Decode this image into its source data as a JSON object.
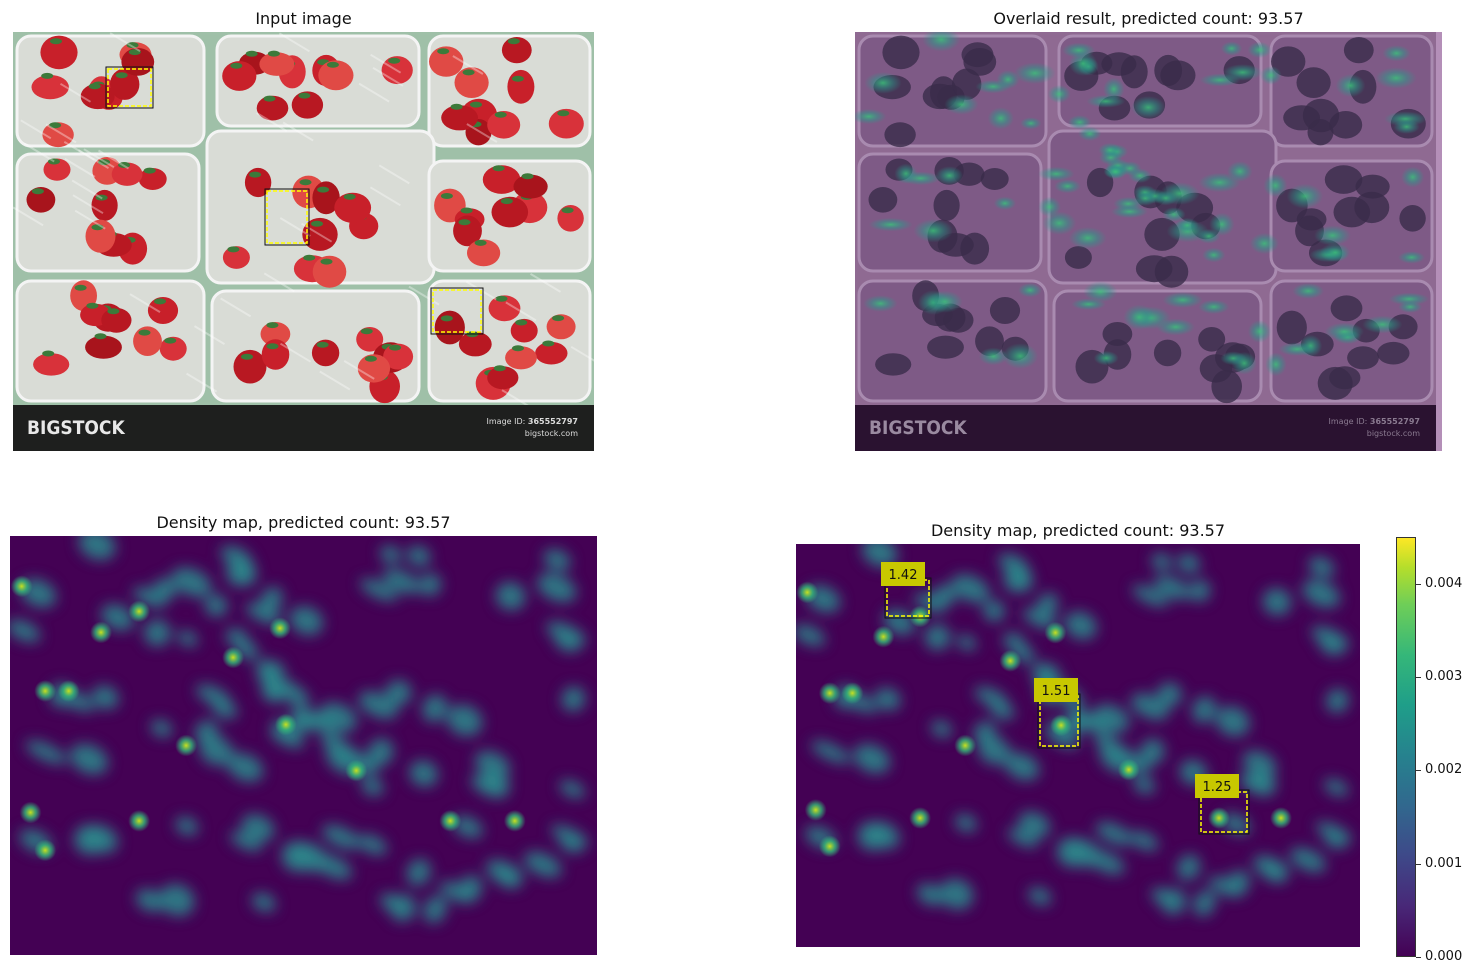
{
  "panels": {
    "input": {
      "title": "Input image"
    },
    "overlay": {
      "title": "Overlaid result, predicted count: 93.57"
    },
    "density": {
      "title": "Density map, predicted count: 93.57"
    },
    "density_boxes": {
      "title": "Density map, predicted count: 93.57"
    }
  },
  "watermark": {
    "logo": "BIGSTOCK",
    "image_id_label": "Image ID:",
    "image_id": "365552797",
    "site": "bigstock.com"
  },
  "colors": {
    "viridis_low": "#440154",
    "viridis_mid": "#21918c",
    "viridis_high": "#fde725",
    "exemplar_box": "#ffff00",
    "label_bg": "#c8c800"
  },
  "chart_data": [
    {
      "type": "heatmap",
      "title": "Density map, predicted count: 93.57",
      "predicted_count": 93.57,
      "colormap": "viridis"
    },
    {
      "type": "heatmap",
      "title": "Density map, predicted count: 93.57",
      "predicted_count": 93.57,
      "colormap": "viridis",
      "colorbar": {
        "range": [
          0.0,
          0.0045
        ],
        "ticks": [
          "0.000",
          "0.001",
          "0.002",
          "0.003",
          "0.004"
        ]
      },
      "exemplar_counts": [
        "1.42",
        "1.51",
        "1.25"
      ]
    }
  ]
}
